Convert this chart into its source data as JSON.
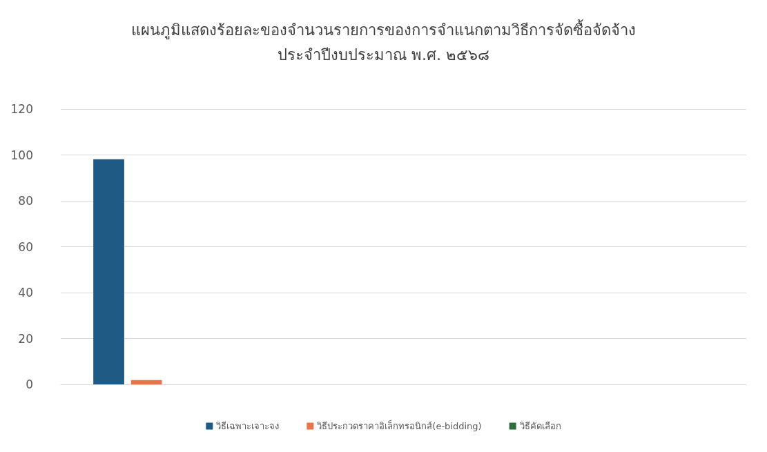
{
  "chart_data": {
    "type": "bar",
    "title": "แผนภูมิแสดงร้อยละของจำนวนรายการของการจำแนกตามวิธีการจัดซื้อจัดจ้าง\nประจำปีงบประมาณ พ.ศ. ๒๕๖๘",
    "categories": [
      null,
      null,
      null,
      null
    ],
    "series": [
      {
        "name": "วิธีเฉพาะเจาะจง",
        "color": "#1f5a85",
        "values": [
          98.1,
          null,
          null,
          null
        ]
      },
      {
        "name": "วิธีประกวดราคาอิเล็กทรอนิกส์(e-bidding)",
        "color": "#e8744a",
        "values": [
          1.9,
          null,
          null,
          null
        ]
      },
      {
        "name": "วิธีคัดเลือก",
        "color": "#2e6e3e",
        "values": [
          0,
          null,
          null,
          null
        ]
      }
    ],
    "ylim": [
      0,
      120
    ],
    "yticks": [
      0,
      20,
      40,
      60,
      80,
      100,
      120
    ],
    "grid": "y",
    "legend": "bottom"
  }
}
